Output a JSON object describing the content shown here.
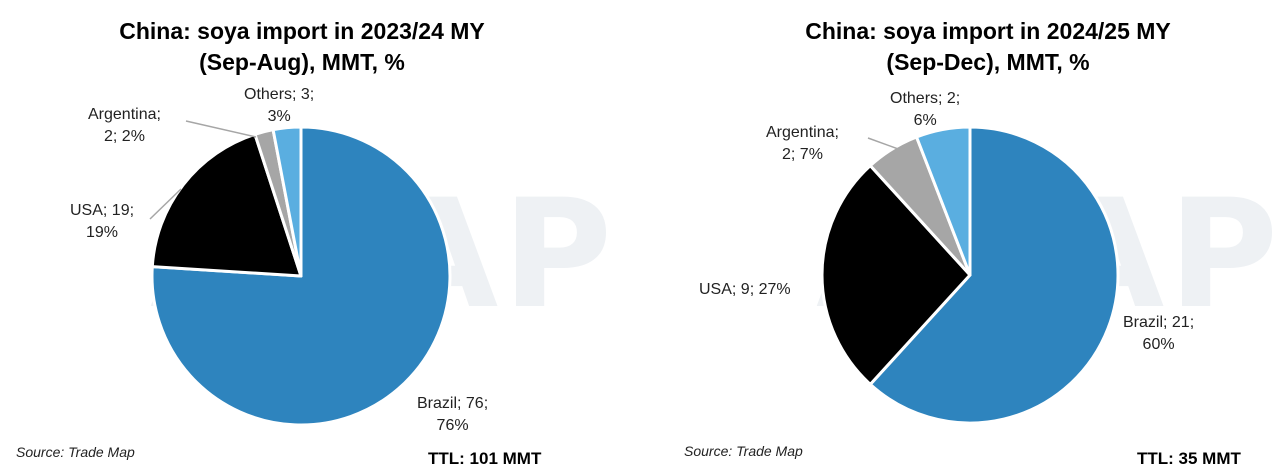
{
  "charts": [
    {
      "title_line1": "China: soya import in 2023/24 MY",
      "title_line2": "(Sep-Aug), MMT, %",
      "source": "Source: Trade Map",
      "total": "TTL: 101 MMT",
      "watermark": "ASAP",
      "labels": [
        {
          "line1": "Brazil; 76;",
          "line2": "76%"
        },
        {
          "line1": "USA; 19;",
          "line2": "19%"
        },
        {
          "line1": "Argentina;",
          "line2": "2; 2%"
        },
        {
          "line1": "Others; 3;",
          "line2": "3%"
        }
      ]
    },
    {
      "title_line1": "China: soya import in 2024/25 MY",
      "title_line2": "(Sep-Dec), MMT, %",
      "source": "Source: Trade Map",
      "total": "TTL: 35 MMT",
      "watermark": "ASAP",
      "labels": [
        {
          "line1": "Brazil; 21;",
          "line2": "60%"
        },
        {
          "line1": "USA; 9; 27%",
          "line2": ""
        },
        {
          "line1": "Argentina;",
          "line2": "2; 7%"
        },
        {
          "line1": "Others; 2;",
          "line2": "6%"
        }
      ]
    }
  ],
  "chart_data": [
    {
      "type": "pie",
      "title": "China: soya import in 2023/24 MY (Sep-Aug), MMT, %",
      "unit": "MMT",
      "start": "12 o'clock, clockwise",
      "categories": [
        "Brazil",
        "USA",
        "Argentina",
        "Others"
      ],
      "values": [
        76,
        19,
        2,
        3
      ],
      "percents": [
        76,
        19,
        2,
        3
      ],
      "colors": [
        "#2e84be",
        "#000000",
        "#a6a6a6",
        "#5aaee0"
      ],
      "total": 101
    },
    {
      "type": "pie",
      "title": "China: soya import in 2024/25 MY (Sep-Dec), MMT, %",
      "unit": "MMT",
      "start": "12 o'clock, clockwise",
      "categories": [
        "Brazil",
        "USA",
        "Argentina",
        "Others"
      ],
      "values": [
        21,
        9,
        2,
        2
      ],
      "percents": [
        60,
        27,
        7,
        6
      ],
      "colors": [
        "#2e84be",
        "#000000",
        "#a6a6a6",
        "#5aaee0"
      ],
      "total": 35
    }
  ]
}
